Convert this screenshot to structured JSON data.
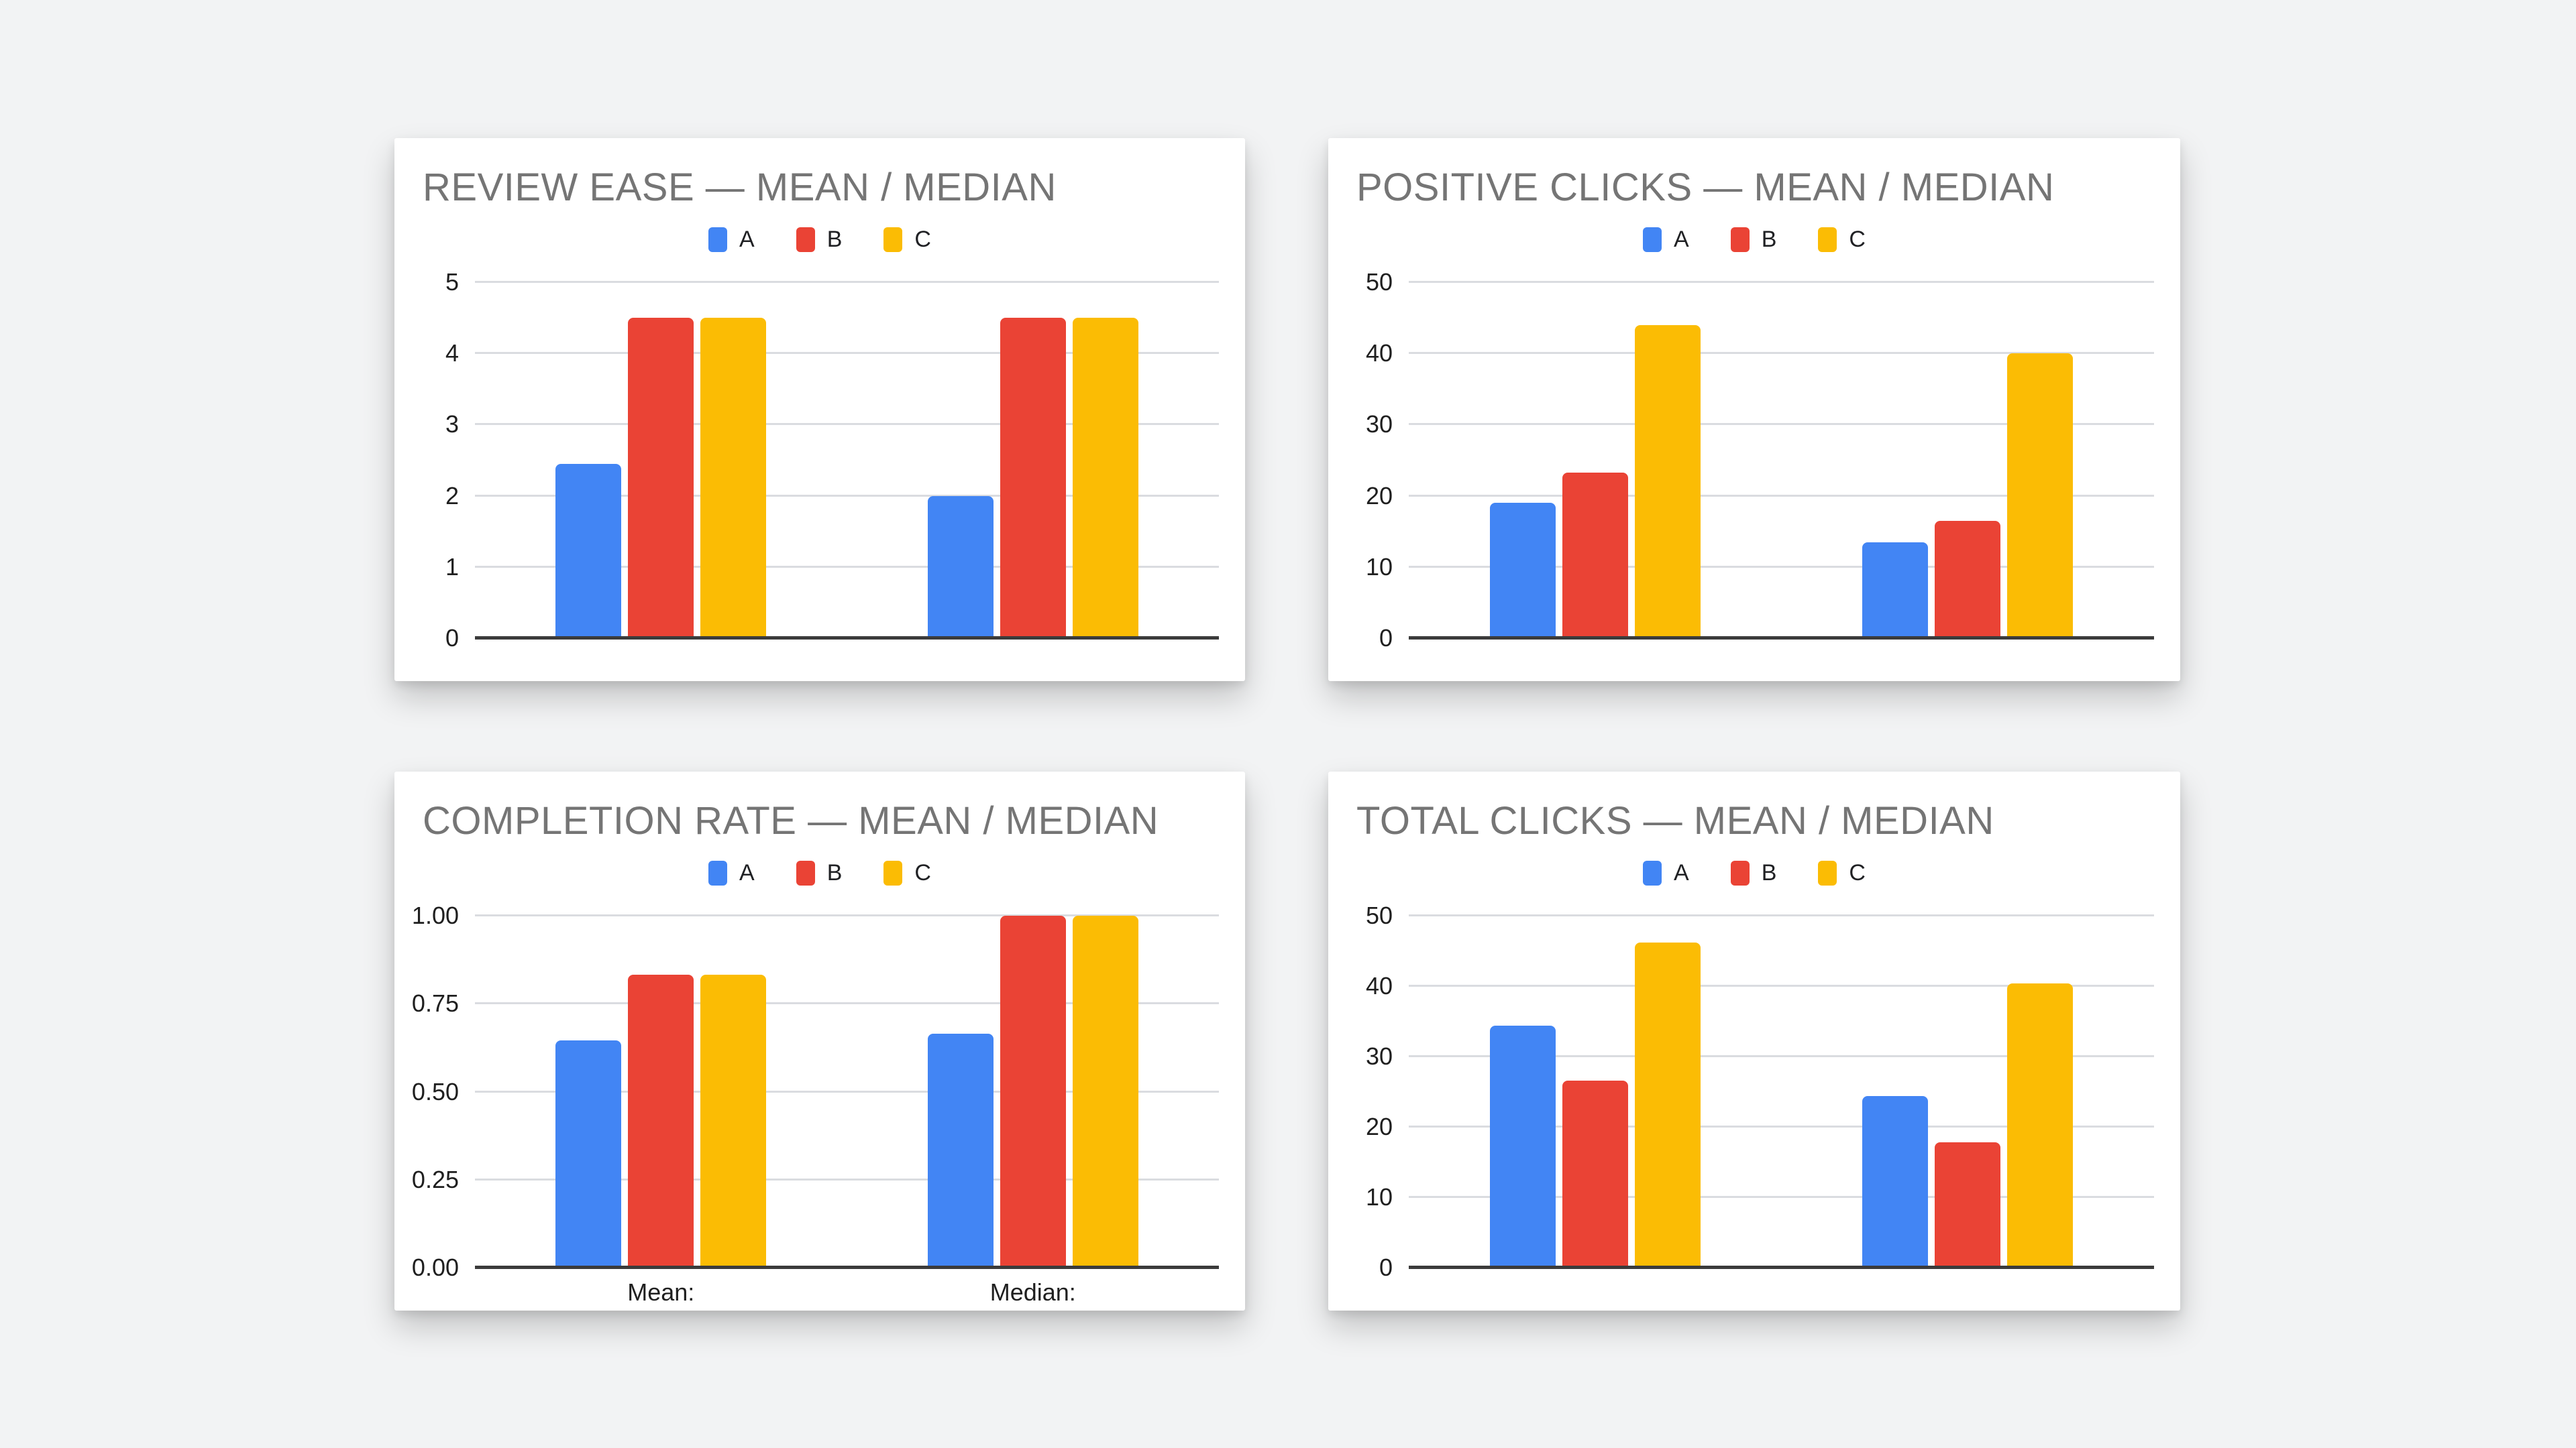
{
  "page": {
    "background_color": "#F2F3F4",
    "card_color": "#FFFFFF"
  },
  "colors": {
    "series_a": "#4285F4",
    "series_b": "#EA4335",
    "series_c": "#FBBC04",
    "title_text": "#757575",
    "axis_text": "#1F1F1F",
    "gridline": "#DADCE0",
    "axis_line": "#3B3B3B"
  },
  "chart_data": [
    {
      "type": "bar",
      "title": "REVIEW EASE — MEAN / MEDIAN",
      "categories": [
        "Mean",
        "Median"
      ],
      "x_tick_labels": [],
      "series": [
        {
          "name": "A",
          "color": "#4285F4",
          "values": [
            2.45,
            2.0
          ]
        },
        {
          "name": "B",
          "color": "#EA4335",
          "values": [
            4.5,
            4.5
          ]
        },
        {
          "name": "C",
          "color": "#FBBC04",
          "values": [
            4.5,
            4.5
          ]
        }
      ],
      "ylim": [
        0,
        5
      ],
      "y_ticks": [
        0,
        1,
        2,
        3,
        4,
        5
      ],
      "y_tick_labels": [
        "0",
        "1",
        "2",
        "3",
        "4",
        "5"
      ],
      "grid": true,
      "legend_position": "top"
    },
    {
      "type": "bar",
      "title": "POSITIVE CLICKS — MEAN / MEDIAN",
      "categories": [
        "Mean",
        "Median"
      ],
      "x_tick_labels": [],
      "series": [
        {
          "name": "A",
          "color": "#4285F4",
          "values": [
            19,
            13.5
          ]
        },
        {
          "name": "B",
          "color": "#EA4335",
          "values": [
            23.3,
            16.5
          ]
        },
        {
          "name": "C",
          "color": "#FBBC04",
          "values": [
            44,
            40
          ]
        }
      ],
      "ylim": [
        0,
        50
      ],
      "y_ticks": [
        0,
        10,
        20,
        30,
        40,
        50
      ],
      "y_tick_labels": [
        "0",
        "10",
        "20",
        "30",
        "40",
        "50"
      ],
      "grid": true,
      "legend_position": "top"
    },
    {
      "type": "bar",
      "title": "COMPLETION RATE — MEAN / MEDIAN",
      "categories": [
        "Mean",
        "Median"
      ],
      "x_tick_labels": [
        "Mean:",
        "Median:"
      ],
      "series": [
        {
          "name": "A",
          "color": "#4285F4",
          "values": [
            0.645,
            0.665
          ]
        },
        {
          "name": "B",
          "color": "#EA4335",
          "values": [
            0.833,
            1.0
          ]
        },
        {
          "name": "C",
          "color": "#FBBC04",
          "values": [
            0.833,
            1.0
          ]
        }
      ],
      "ylim": [
        0,
        1
      ],
      "y_ticks": [
        0,
        0.25,
        0.5,
        0.75,
        1
      ],
      "y_tick_labels": [
        "0.00",
        "0.25",
        "0.50",
        "0.75",
        "1.00"
      ],
      "grid": true,
      "legend_position": "top"
    },
    {
      "type": "bar",
      "title": "TOTAL CLICKS — MEAN / MEDIAN",
      "categories": [
        "Mean",
        "Median"
      ],
      "x_tick_labels": [],
      "series": [
        {
          "name": "A",
          "color": "#4285F4",
          "values": [
            34.4,
            24.4
          ]
        },
        {
          "name": "B",
          "color": "#EA4335",
          "values": [
            26.6,
            17.8
          ]
        },
        {
          "name": "C",
          "color": "#FBBC04",
          "values": [
            46.2,
            40.4
          ]
        }
      ],
      "ylim": [
        0,
        50
      ],
      "y_ticks": [
        0,
        10,
        20,
        30,
        40,
        50
      ],
      "y_tick_labels": [
        "0",
        "10",
        "20",
        "30",
        "40",
        "50"
      ],
      "grid": true,
      "legend_position": "top"
    }
  ]
}
